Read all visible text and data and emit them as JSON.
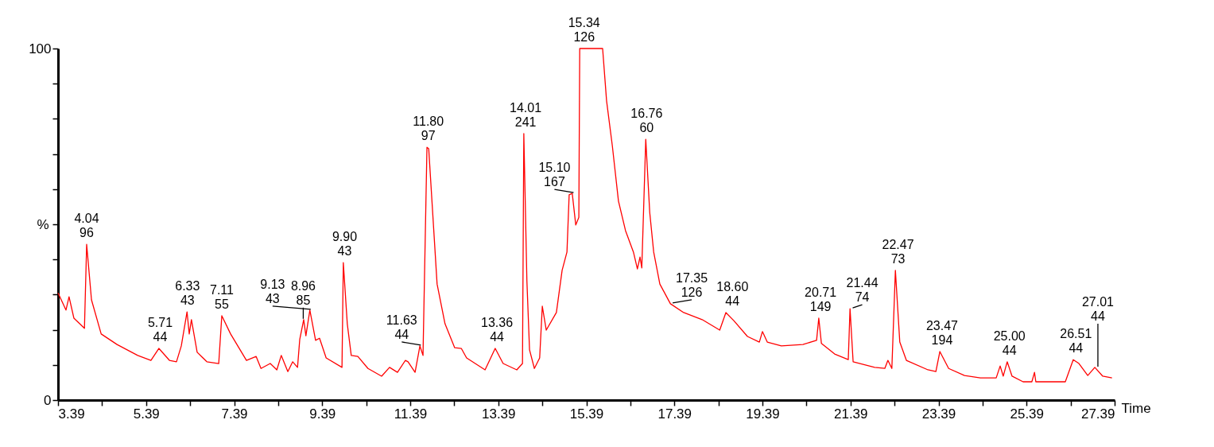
{
  "chart_data": {
    "type": "line",
    "xlabel": "Time",
    "ylabel": "%",
    "xlim": [
      3.39,
      27.39
    ],
    "xticks": [
      3.39,
      {
        "value": 4.39,
        "label": null
      },
      5.39,
      {
        "value": 6.39,
        "label": null
      },
      7.39,
      {
        "value": 8.39,
        "label": null
      },
      9.39,
      {
        "value": 10.39,
        "label": null
      },
      11.39,
      {
        "value": 12.39,
        "label": null
      },
      13.39,
      {
        "value": 14.39,
        "label": null
      },
      15.39,
      {
        "value": 16.39,
        "label": null
      },
      17.39,
      {
        "value": 18.39,
        "label": null
      },
      19.39,
      {
        "value": 20.39,
        "label": null
      },
      21.39,
      {
        "value": 22.39,
        "label": null
      },
      23.39,
      {
        "value": 24.39,
        "label": null
      },
      25.39,
      {
        "value": 26.39,
        "label": null
      },
      27.39
    ],
    "ylim": [
      0,
      100
    ],
    "yticks": [
      0,
      {
        "value": 10,
        "label": null
      },
      {
        "value": 20,
        "label": null
      },
      {
        "value": 30,
        "label": null
      },
      {
        "value": 40,
        "label": null
      },
      {
        "value": 50,
        "label": null
      },
      {
        "value": 60,
        "label": null
      },
      {
        "value": 70,
        "label": null
      },
      {
        "value": 80,
        "label": null
      },
      {
        "value": 90,
        "label": null
      },
      100
    ],
    "series": [
      {
        "color": "#ff0000",
        "x": [
          3.39,
          3.57,
          3.64,
          3.75,
          3.99,
          4.04,
          4.15,
          4.37,
          4.73,
          5.2,
          5.5,
          5.68,
          5.92,
          6.08,
          6.19,
          6.32,
          6.37,
          6.42,
          6.55,
          6.77,
          7.04,
          7.11,
          7.31,
          7.67,
          7.89,
          8.0,
          8.21,
          8.36,
          8.46,
          8.61,
          8.72,
          8.83,
          8.88,
          8.97,
          9.02,
          9.11,
          9.24,
          9.33,
          9.48,
          9.84,
          9.87,
          9.96,
          10.05,
          10.2,
          10.43,
          10.74,
          10.92,
          11.1,
          11.28,
          11.34,
          11.5,
          11.61,
          11.68,
          11.77,
          11.81,
          12.0,
          12.18,
          12.4,
          12.55,
          12.67,
          13.09,
          13.32,
          13.5,
          13.81,
          13.94,
          13.97,
          14.04,
          14.1,
          14.21,
          14.33,
          14.39,
          14.48,
          14.71,
          14.84,
          14.95,
          15.0,
          15.07,
          15.15,
          15.22,
          15.24,
          15.76,
          15.85,
          15.98,
          16.12,
          16.28,
          16.46,
          16.55,
          16.61,
          16.65,
          16.74,
          16.83,
          16.92,
          17.06,
          17.3,
          17.6,
          18.02,
          18.42,
          18.56,
          18.74,
          19.05,
          19.32,
          19.39,
          19.5,
          19.82,
          20.31,
          20.62,
          20.67,
          20.73,
          21.03,
          21.34,
          21.38,
          21.45,
          21.94,
          22.17,
          22.24,
          22.33,
          22.41,
          22.51,
          22.66,
          23.15,
          23.33,
          23.42,
          23.62,
          23.98,
          24.34,
          24.7,
          24.79,
          24.86,
          24.95,
          25.06,
          25.31,
          25.51,
          25.57,
          25.6,
          26.27,
          26.45,
          26.58,
          26.78,
          26.94,
          27.12,
          27.33
        ],
        "values": [
          30.5,
          25.6,
          29.4,
          23.3,
          20.4,
          44.3,
          28.5,
          18.8,
          15.8,
          12.7,
          11.3,
          14.7,
          11.3,
          10.9,
          15.4,
          25.1,
          18.8,
          22.9,
          13.6,
          10.9,
          10.4,
          24.0,
          18.8,
          11.3,
          12.4,
          9.0,
          10.4,
          8.6,
          12.7,
          8.1,
          10.9,
          9.3,
          17.2,
          22.9,
          18.3,
          25.6,
          17.0,
          17.6,
          12.0,
          9.3,
          39.1,
          21.7,
          12.7,
          12.4,
          9.0,
          6.8,
          9.3,
          7.9,
          11.3,
          10.9,
          7.9,
          15.4,
          12.7,
          71.9,
          71.5,
          33.0,
          21.7,
          14.9,
          14.7,
          12.0,
          8.6,
          14.7,
          10.4,
          8.6,
          10.4,
          75.8,
          33.9,
          14.3,
          9.0,
          12.0,
          26.7,
          19.9,
          24.9,
          36.9,
          42.1,
          58.4,
          58.8,
          49.8,
          52.0,
          100,
          100,
          85.1,
          72.4,
          56.6,
          48.2,
          42.1,
          37.3,
          40.7,
          37.6,
          74.2,
          53.4,
          42.1,
          33.0,
          27.4,
          24.9,
          22.9,
          19.9,
          24.9,
          22.6,
          18.1,
          16.5,
          19.5,
          16.5,
          15.4,
          15.8,
          17.0,
          23.3,
          16.1,
          13.1,
          11.5,
          26.0,
          10.9,
          9.3,
          9.0,
          11.3,
          9.0,
          36.9,
          16.5,
          11.3,
          8.6,
          8.1,
          13.8,
          9.0,
          7.0,
          6.3,
          6.3,
          9.7,
          6.8,
          10.9,
          6.8,
          5.2,
          5.2,
          7.9,
          5.2,
          5.2,
          11.5,
          10.4,
          7.0,
          9.3,
          6.8,
          6.3
        ]
      }
    ],
    "annotations": [
      {
        "text": "4.04\n96",
        "x": 4.04,
        "y": 44.3
      },
      {
        "text": "5.71\n44",
        "x": 5.71,
        "y": 14.7
      },
      {
        "text": "6.33\n43",
        "x": 6.33,
        "y": 25.1
      },
      {
        "text": "7.11\n55",
        "x": 7.11,
        "y": 24.0
      },
      {
        "text": "8.96\n85",
        "x": 8.96,
        "y": 22.9
      },
      {
        "text": "9.13\n43",
        "x": 9.13,
        "y": 25.6
      },
      {
        "text": "9.90\n43",
        "x": 9.9,
        "y": 39.1
      },
      {
        "text": "11.63\n44",
        "x": 11.63,
        "y": 15.4
      },
      {
        "text": "11.80\n97",
        "x": 11.8,
        "y": 71.9
      },
      {
        "text": "13.36\n44",
        "x": 13.36,
        "y": 14.7
      },
      {
        "text": "14.01\n241",
        "x": 14.01,
        "y": 75.8
      },
      {
        "text": "15.10\n167",
        "x": 15.1,
        "y": 58.8
      },
      {
        "text": "15.34\n126",
        "x": 15.34,
        "y": 100
      },
      {
        "text": "16.76\n60",
        "x": 16.76,
        "y": 74.2
      },
      {
        "text": "17.35\n126",
        "x": 17.35,
        "y": 27.4
      },
      {
        "text": "18.60\n44",
        "x": 18.6,
        "y": 24.9
      },
      {
        "text": "20.71\n149",
        "x": 20.71,
        "y": 23.3
      },
      {
        "text": "21.44\n74",
        "x": 21.44,
        "y": 26.0
      },
      {
        "text": "22.47\n73",
        "x": 22.47,
        "y": 36.9
      },
      {
        "text": "23.47\n194",
        "x": 23.47,
        "y": 13.8
      },
      {
        "text": "25.00\n44",
        "x": 25.0,
        "y": 10.9
      },
      {
        "text": "26.51\n44",
        "x": 26.51,
        "y": 11.5
      },
      {
        "text": "27.01\n44",
        "x": 27.01,
        "y": 9.3
      }
    ]
  }
}
